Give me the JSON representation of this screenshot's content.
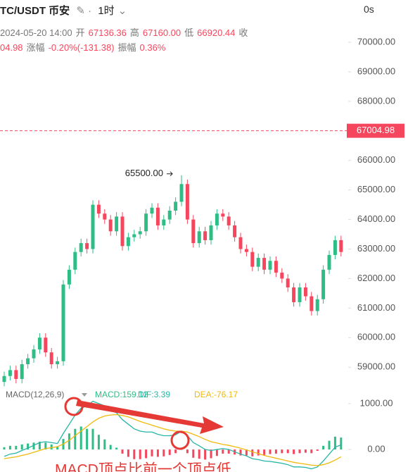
{
  "header": {
    "symbol": "TC/USDT 币安",
    "interval": "1时",
    "timer": "0s",
    "line1": [
      {
        "text": "2024-05-20 14:00",
        "tone": "grey"
      },
      {
        "text": "开",
        "tone": "grey"
      },
      {
        "text": "67136.36",
        "tone": "red"
      },
      {
        "text": "高",
        "tone": "grey"
      },
      {
        "text": "67160.00",
        "tone": "red"
      },
      {
        "text": "低",
        "tone": "grey"
      },
      {
        "text": "66920.44",
        "tone": "red"
      },
      {
        "text": "收",
        "tone": "grey"
      }
    ],
    "line2": [
      {
        "text": "04.98",
        "tone": "red"
      },
      {
        "text": "涨幅",
        "tone": "grey"
      },
      {
        "text": "-0.20%(-131.38)",
        "tone": "red"
      },
      {
        "text": "振幅",
        "tone": "grey"
      },
      {
        "text": "0.36%",
        "tone": "red"
      }
    ]
  },
  "chart_data": [
    {
      "type": "candlestick",
      "up_color": "#2ebd85",
      "down_color": "#f6465d",
      "open": [
        58500,
        58700,
        58900,
        58600,
        59100,
        59300,
        59600,
        60000,
        59500,
        59100,
        59200,
        61800,
        62300,
        62900,
        63200,
        63000,
        64500,
        64200,
        64000,
        63600,
        64100,
        63100,
        63400,
        63500,
        63600,
        64200,
        64400,
        63800,
        64000,
        64300,
        64600,
        65200,
        64000,
        63200,
        63600,
        63300,
        63800,
        64200,
        64100,
        63800,
        63400,
        63000,
        62900,
        62400,
        62700,
        62300,
        62600,
        62200,
        62000,
        61700,
        61200,
        61700,
        61400,
        60900,
        61300,
        62300,
        62800,
        63300
      ],
      "high": [
        58850,
        59050,
        59050,
        59250,
        59450,
        59750,
        60150,
        60150,
        59650,
        59350,
        61950,
        62450,
        63050,
        63350,
        63350,
        64650,
        64650,
        64350,
        64150,
        64250,
        64250,
        63550,
        63650,
        63750,
        64350,
        64550,
        64550,
        64150,
        64450,
        64750,
        65500,
        65350,
        64150,
        63750,
        63750,
        63950,
        64350,
        64350,
        64250,
        63950,
        63550,
        63150,
        63050,
        62850,
        62850,
        62750,
        62750,
        62350,
        62150,
        61850,
        61850,
        61850,
        61550,
        61450,
        62450,
        62950,
        63450,
        63450
      ],
      "low": [
        58350,
        58550,
        58450,
        58450,
        58950,
        59150,
        59450,
        59350,
        58950,
        58950,
        59050,
        61650,
        62150,
        62750,
        62850,
        62850,
        64050,
        63850,
        63450,
        63450,
        62950,
        62950,
        63250,
        63350,
        63450,
        64050,
        63650,
        63650,
        63850,
        64150,
        64450,
        63850,
        63050,
        63050,
        63150,
        63150,
        63650,
        63950,
        63650,
        63250,
        62850,
        62750,
        62250,
        62250,
        62150,
        62150,
        62050,
        61850,
        61550,
        61050,
        61050,
        61250,
        60750,
        60750,
        61150,
        62150,
        62650,
        62750
      ],
      "close": [
        58700,
        58900,
        58600,
        59100,
        59300,
        59600,
        60000,
        59500,
        59100,
        59200,
        61800,
        62300,
        62900,
        63200,
        63000,
        64500,
        64200,
        64000,
        63600,
        64100,
        63100,
        63400,
        63500,
        63600,
        64200,
        64400,
        63800,
        64000,
        64300,
        64600,
        65200,
        64000,
        63200,
        63600,
        63300,
        63800,
        64200,
        64100,
        63800,
        63400,
        63000,
        62900,
        62400,
        62700,
        62300,
        62600,
        62200,
        62000,
        61700,
        61200,
        61700,
        61400,
        60900,
        61300,
        62300,
        62800,
        63300,
        62900
      ],
      "ylim": [
        58360,
        70240
      ],
      "yticks": [
        {
          "value": 70000,
          "label": "70000.00"
        },
        {
          "value": 69000,
          "label": "69000.00"
        },
        {
          "value": 68000,
          "label": "68000.00"
        },
        {
          "value": 66000,
          "label": "66000.00"
        },
        {
          "value": 65000,
          "label": "65000.00"
        },
        {
          "value": 64000,
          "label": "64000.00"
        },
        {
          "value": 63000,
          "label": "63000.00"
        },
        {
          "value": 62000,
          "label": "62000.00"
        },
        {
          "value": 61000,
          "label": "61000.00"
        },
        {
          "value": 60000,
          "label": "60000.00"
        },
        {
          "value": 59000,
          "label": "59000.00"
        }
      ],
      "last_price": {
        "value": 67004.98,
        "label": "67004.98",
        "color": "#f6465d"
      },
      "peak": {
        "value": 65500,
        "label": "65500.00"
      }
    },
    {
      "type": "macd",
      "title": "MACD(12,26,9)",
      "ylim": [
        -490,
        1320
      ],
      "yticks": [
        {
          "value": 1000,
          "label": "1000.00"
        },
        {
          "value": 0,
          "label": "0.00"
        }
      ],
      "annotation": "MACD顶点比前一个顶点低",
      "series": [
        {
          "name": "MACD:159.12",
          "color": "#2ebd85",
          "negative_color": "#f6465d",
          "values": [
            50,
            80,
            80,
            110,
            130,
            150,
            170,
            150,
            110,
            70,
            230,
            350,
            450,
            500,
            450,
            450,
            320,
            220,
            100,
            40,
            -90,
            -160,
            -210,
            -210,
            -190,
            -150,
            -160,
            -150,
            -120,
            -80,
            0,
            -80,
            -180,
            -200,
            -220,
            -190,
            -140,
            -90,
            -90,
            -110,
            -130,
            -130,
            -150,
            -130,
            -120,
            -100,
            -90,
            -80,
            -80,
            -100,
            -80,
            -70,
            -80,
            -30,
            80,
            190,
            280,
            260
          ]
        },
        {
          "name": "DIF:3.39",
          "color": "#26b5a6",
          "values": [
            -150,
            -100,
            -80,
            -20,
            30,
            90,
            150,
            170,
            150,
            130,
            350,
            550,
            750,
            900,
            950,
            1050,
            1000,
            950,
            850,
            800,
            650,
            550,
            450,
            400,
            380,
            380,
            330,
            300,
            300,
            320,
            400,
            300,
            150,
            80,
            0,
            -20,
            0,
            20,
            0,
            -50,
            -100,
            -140,
            -200,
            -220,
            -250,
            -260,
            -280,
            -300,
            -330,
            -380,
            -380,
            -390,
            -420,
            -380,
            -250,
            -100,
            50,
            100
          ]
        },
        {
          "name": "DEA:-76.17",
          "color": "#f0b90b",
          "values": [
            -200,
            -180,
            -160,
            -130,
            -100,
            -60,
            -20,
            20,
            40,
            60,
            120,
            200,
            300,
            400,
            500,
            600,
            680,
            730,
            750,
            760,
            740,
            710,
            660,
            610,
            570,
            530,
            490,
            450,
            420,
            400,
            400,
            380,
            330,
            280,
            220,
            170,
            140,
            110,
            90,
            60,
            30,
            -10,
            -50,
            -90,
            -130,
            -160,
            -190,
            -220,
            -250,
            -280,
            -300,
            -320,
            -340,
            -350,
            -330,
            -290,
            -230,
            -160
          ]
        }
      ]
    }
  ]
}
